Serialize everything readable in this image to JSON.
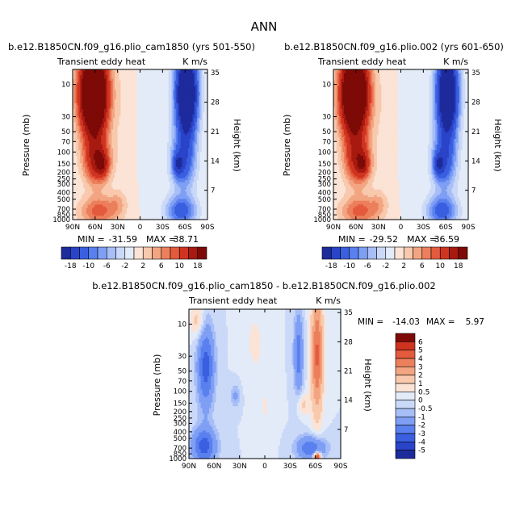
{
  "figure": {
    "main_title": "ANN"
  },
  "chart_data": [
    {
      "type": "heatmap",
      "title": "b.e12.B1850CN.f09_g16.plio_cam1850 (yrs 501-550)",
      "left_label": "Transient eddy heat",
      "right_label": "K m/s",
      "ylabel": "Pressure (mb)",
      "ylabel_right": "Height (km)",
      "x_ticks": [
        "90N",
        "60N",
        "30N",
        "0",
        "30S",
        "60S",
        "90S"
      ],
      "y_ticks": [
        "10",
        "30",
        "50",
        "70",
        "100",
        "150",
        "200",
        "250",
        "300",
        "400",
        "500",
        "700",
        "850",
        "1000"
      ],
      "y_ticks_right": [
        "35",
        "28",
        "21",
        "14",
        "7"
      ],
      "stats": {
        "min_label": "MIN =",
        "min": "-31.59",
        "max_label": "MAX =",
        "max": "38.71"
      },
      "levels": [
        -18,
        -14,
        -10,
        -8,
        -6,
        -4,
        -2,
        0,
        2,
        4,
        6,
        8,
        10,
        14,
        18
      ],
      "colorbar_labels": [
        "-18",
        "-10",
        "-6",
        "-2",
        "2",
        "6",
        "10",
        "18"
      ],
      "colors": [
        "#1e2b9c",
        "#2a44c9",
        "#3a5fe0",
        "#5a80ef",
        "#7f9ff4",
        "#a7bef7",
        "#cbd9f8",
        "#e3ebf8",
        "#fbe3d6",
        "#f8c9ad",
        "#f3a582",
        "#ec7f5c",
        "#e45a3d",
        "#cf3421",
        "#a81a10",
        "#7d0a06"
      ],
      "min": -31.59,
      "max": 38.71,
      "features": [
        {
          "lat": 62,
          "z": 30,
          "amp": 40,
          "slat": 13,
          "sz": 7
        },
        {
          "lat": 58,
          "z": 14,
          "amp": 14,
          "slat": 12,
          "sz": 4
        },
        {
          "lat": 50,
          "z": 13,
          "amp": 8,
          "slat": 6,
          "sz": 2
        },
        {
          "lat": 55,
          "z": 2,
          "amp": 9,
          "slat": 18,
          "sz": 2.5
        },
        {
          "lat": 30,
          "z": 4,
          "amp": 3,
          "slat": 8,
          "sz": 2
        },
        {
          "lat": -62,
          "z": 30,
          "amp": -34,
          "slat": 10,
          "sz": 7
        },
        {
          "lat": -58,
          "z": 14,
          "amp": -12,
          "slat": 11,
          "sz": 5
        },
        {
          "lat": -50,
          "z": 13,
          "amp": -10,
          "slat": 5,
          "sz": 2
        },
        {
          "lat": -55,
          "z": 2,
          "amp": -12,
          "slat": 14,
          "sz": 2.5
        },
        {
          "lat": -15,
          "z": 25,
          "amp": -1.6,
          "slat": 12,
          "sz": 15
        },
        {
          "lat": 20,
          "z": 25,
          "amp": 1.4,
          "slat": 12,
          "sz": 15
        }
      ]
    },
    {
      "type": "heatmap",
      "title": "b.e12.B1850CN.f09_g16.plio.002 (yrs 601-650)",
      "left_label": "Transient eddy heat",
      "right_label": "K m/s",
      "ylabel": "Pressure (mb)",
      "ylabel_right": "Height (km)",
      "x_ticks": [
        "90N",
        "60N",
        "30N",
        "0",
        "30S",
        "60S",
        "90S"
      ],
      "y_ticks": [
        "10",
        "30",
        "50",
        "70",
        "100",
        "150",
        "200",
        "250",
        "300",
        "400",
        "500",
        "700",
        "850",
        "1000"
      ],
      "y_ticks_right": [
        "35",
        "28",
        "21",
        "14",
        "7"
      ],
      "stats": {
        "min_label": "MIN =",
        "min": "-29.52",
        "max_label": "MAX =",
        "max": "36.59"
      },
      "levels": [
        -18,
        -14,
        -10,
        -8,
        -6,
        -4,
        -2,
        0,
        2,
        4,
        6,
        8,
        10,
        14,
        18
      ],
      "colorbar_labels": [
        "-18",
        "-10",
        "-6",
        "-2",
        "2",
        "6",
        "10",
        "18"
      ],
      "colors": [
        "#1e2b9c",
        "#2a44c9",
        "#3a5fe0",
        "#5a80ef",
        "#7f9ff4",
        "#a7bef7",
        "#cbd9f8",
        "#e3ebf8",
        "#fbe3d6",
        "#f8c9ad",
        "#f3a582",
        "#ec7f5c",
        "#e45a3d",
        "#cf3421",
        "#a81a10",
        "#7d0a06"
      ],
      "min": -29.52,
      "max": 36.59,
      "features": [
        {
          "lat": 62,
          "z": 30,
          "amp": 38,
          "slat": 13,
          "sz": 7
        },
        {
          "lat": 58,
          "z": 14,
          "amp": 13,
          "slat": 12,
          "sz": 4
        },
        {
          "lat": 50,
          "z": 13,
          "amp": 8,
          "slat": 6,
          "sz": 2
        },
        {
          "lat": 55,
          "z": 2,
          "amp": 9,
          "slat": 18,
          "sz": 2.5
        },
        {
          "lat": 30,
          "z": 4,
          "amp": 3,
          "slat": 8,
          "sz": 2
        },
        {
          "lat": -62,
          "z": 30,
          "amp": -32,
          "slat": 10,
          "sz": 7
        },
        {
          "lat": -58,
          "z": 14,
          "amp": -12,
          "slat": 11,
          "sz": 5
        },
        {
          "lat": -50,
          "z": 13,
          "amp": -10,
          "slat": 5,
          "sz": 2
        },
        {
          "lat": -55,
          "z": 2,
          "amp": -12,
          "slat": 14,
          "sz": 2.5
        },
        {
          "lat": -15,
          "z": 25,
          "amp": -1.6,
          "slat": 12,
          "sz": 15
        },
        {
          "lat": 20,
          "z": 25,
          "amp": 1.4,
          "slat": 12,
          "sz": 15
        }
      ]
    },
    {
      "type": "heatmap",
      "title": "b.e12.B1850CN.f09_g16.plio_cam1850 - b.e12.B1850CN.f09_g16.plio.002",
      "left_label": "Transient eddy heat",
      "right_label": "K m/s",
      "ylabel": "Pressure (mb)",
      "ylabel_right": "Height (km)",
      "x_ticks": [
        "90N",
        "60N",
        "30N",
        "0",
        "30S",
        "60S",
        "90S"
      ],
      "y_ticks": [
        "10",
        "30",
        "50",
        "70",
        "100",
        "150",
        "200",
        "250",
        "300",
        "400",
        "500",
        "700",
        "850",
        "1000"
      ],
      "y_ticks_right": [
        "35",
        "28",
        "21",
        "14",
        "7"
      ],
      "stats": {
        "min_label": "MIN =",
        "min": "-14.03",
        "max_label": "MAX =",
        "max": "5.97"
      },
      "levels": [
        -5,
        -4,
        -3,
        -2,
        -1,
        -0.5,
        0,
        0.5,
        1,
        2,
        3,
        4,
        5,
        6
      ],
      "colorbar_labels": [
        "6",
        "5",
        "4",
        "3",
        "2",
        "1",
        "0.5",
        "0",
        "-0.5",
        "-1",
        "-2",
        "-3",
        "-4",
        "-5"
      ],
      "colors": [
        "#1e2b9c",
        "#2a44c9",
        "#3a5fe0",
        "#5a80ef",
        "#7f9ff4",
        "#a7bef7",
        "#cbd9f8",
        "#e3ebf8",
        "#fbe3d6",
        "#f8c9ad",
        "#f3a582",
        "#ec7f5c",
        "#e45a3d",
        "#cf3421",
        "#7d0a06"
      ],
      "min": -14.03,
      "max": 5.97,
      "features": [
        {
          "lat": 70,
          "z": 22,
          "amp": -3.5,
          "slat": 7,
          "sz": 7
        },
        {
          "lat": 72,
          "z": 3,
          "amp": -3.5,
          "slat": 10,
          "sz": 3
        },
        {
          "lat": 80,
          "z": 33,
          "amp": 1.4,
          "slat": 6,
          "sz": 3
        },
        {
          "lat": 35,
          "z": 15,
          "amp": -1.2,
          "slat": 4,
          "sz": 2
        },
        {
          "lat": 12,
          "z": 28,
          "amp": 0.6,
          "slat": 10,
          "sz": 7
        },
        {
          "lat": 0,
          "z": 12,
          "amp": 0.5,
          "slat": 8,
          "sz": 6
        },
        {
          "lat": -40,
          "z": 25,
          "amp": -2.5,
          "slat": 4,
          "sz": 7
        },
        {
          "lat": -62,
          "z": 25,
          "amp": 4.2,
          "slat": 5,
          "sz": 10
        },
        {
          "lat": -45,
          "z": 13,
          "amp": 1.3,
          "slat": 5,
          "sz": 2
        },
        {
          "lat": -55,
          "z": 2.5,
          "amp": -3,
          "slat": 12,
          "sz": 2
        },
        {
          "lat": -62,
          "z": 0.5,
          "amp": 6,
          "slat": 3,
          "sz": 0.7
        }
      ]
    }
  ]
}
